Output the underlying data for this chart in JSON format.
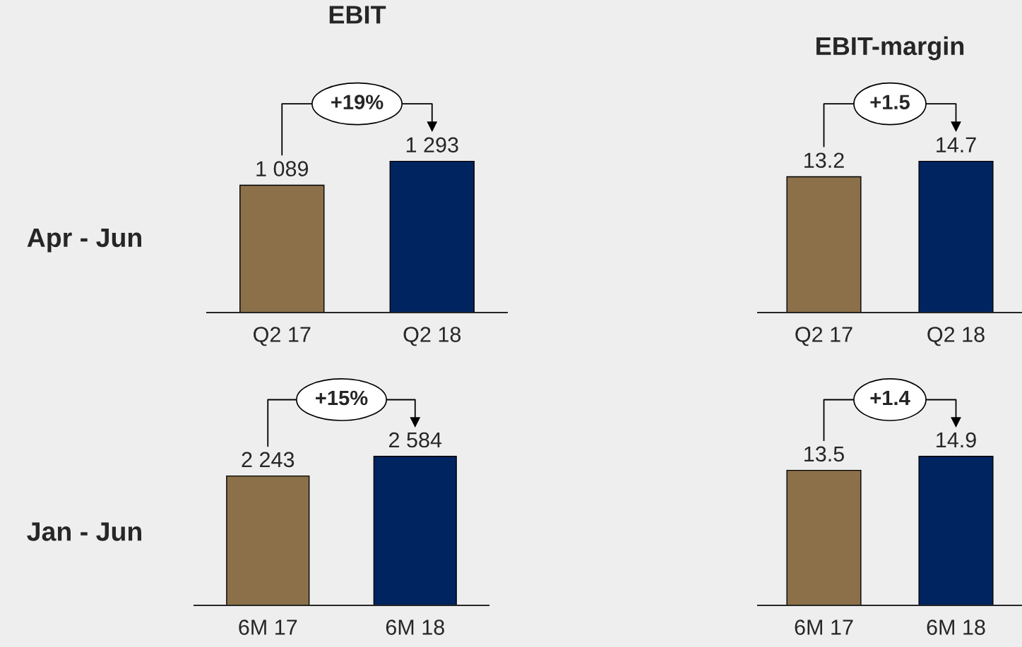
{
  "chart_data": [
    {
      "type": "bar",
      "title": "EBIT",
      "ylabel": "Apr - Jun",
      "categories": [
        "Q2 17",
        "Q2 18"
      ],
      "values": [
        1089,
        1293
      ],
      "colors": [
        "#8b7049",
        "#002460"
      ],
      "value_labels": [
        "1 089",
        "1 293"
      ],
      "annotations": [
        "+19%"
      ]
    },
    {
      "type": "bar",
      "title": "EBIT-margin",
      "categories": [
        "Q2 17",
        "Q2 18"
      ],
      "values": [
        13.2,
        14.7
      ],
      "colors": [
        "#8b7049",
        "#002460"
      ],
      "data_labels": true,
      "annotations": [
        "+1.5"
      ]
    },
    {
      "type": "bar",
      "ylabel": "Jan - Jun",
      "categories": [
        "6M 17",
        "6M 18"
      ],
      "values": [
        2243,
        2584
      ],
      "colors": [
        "#8b7049",
        "#002460"
      ],
      "value_labels": [
        "2 243",
        "2 584"
      ],
      "annotations": [
        "+15%"
      ]
    },
    {
      "type": "bar",
      "categories": [
        "6M 17",
        "6M 18"
      ],
      "values": [
        13.5,
        14.9
      ],
      "colors": [
        "#8b7049",
        "#002460"
      ],
      "data_labels": true,
      "annotations": [
        "+1.4"
      ]
    }
  ]
}
